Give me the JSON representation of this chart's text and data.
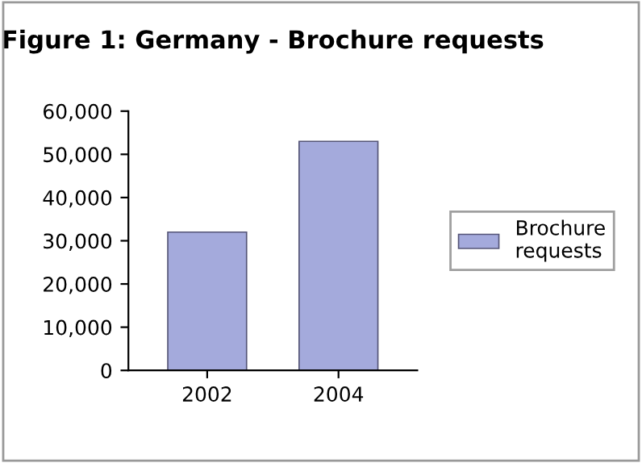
{
  "chart_data": {
    "type": "bar",
    "title": "Figure 1: Germany - Brochure requests",
    "categories": [
      "2002",
      "2004"
    ],
    "series": [
      {
        "name": "Brochure\nrequests",
        "color": "#a4aadc",
        "values": [
          32000,
          53000
        ]
      }
    ],
    "ylim": [
      0,
      60000
    ],
    "yticks": [
      {
        "value": 0,
        "label": "0"
      },
      {
        "value": 10000,
        "label": "10,000"
      },
      {
        "value": 20000,
        "label": "20,000"
      },
      {
        "value": 30000,
        "label": "30,000"
      },
      {
        "value": 40000,
        "label": "40,000"
      },
      {
        "value": 50000,
        "label": "50,000"
      },
      {
        "value": 60000,
        "label": "60,000"
      }
    ],
    "grid": false,
    "legend": "right"
  }
}
